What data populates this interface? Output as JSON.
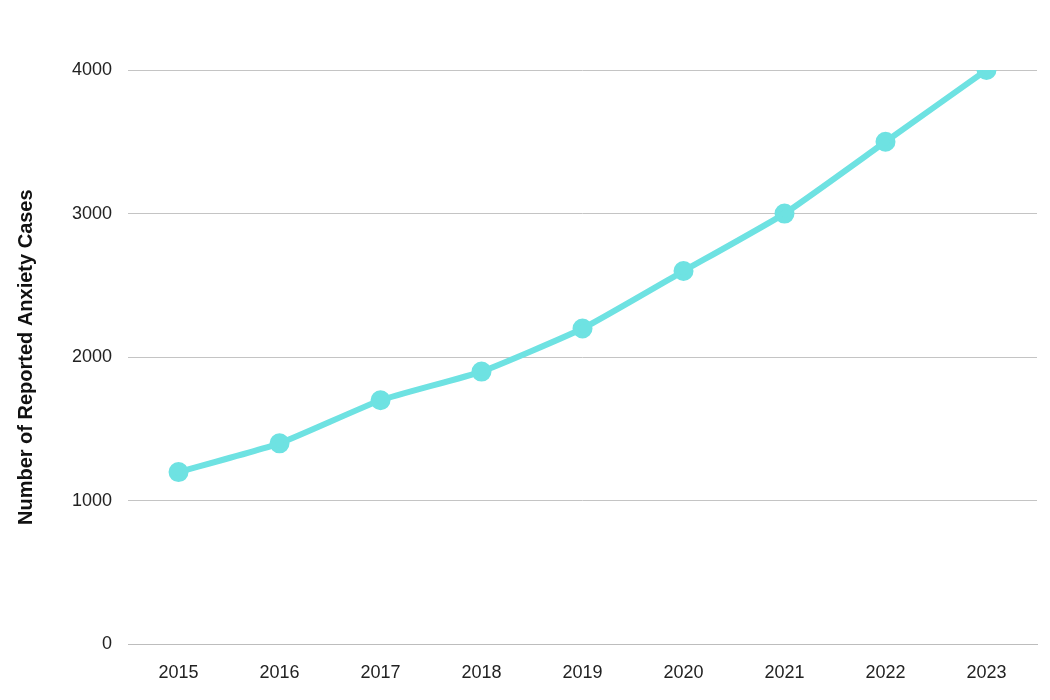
{
  "chart_data": {
    "type": "line",
    "y_label": "Number of Reported Anxiety Cases",
    "categories": [
      "2015",
      "2016",
      "2017",
      "2018",
      "2019",
      "2020",
      "2021",
      "2022",
      "2023"
    ],
    "values": [
      1200,
      1400,
      1700,
      1900,
      2200,
      2600,
      3000,
      3500,
      4000
    ],
    "color": "#6ee2e2",
    "marker": "circle",
    "ylim": [
      0,
      4000
    ],
    "yticks": [
      0,
      1000,
      2000,
      3000,
      4000
    ],
    "grid": true
  }
}
